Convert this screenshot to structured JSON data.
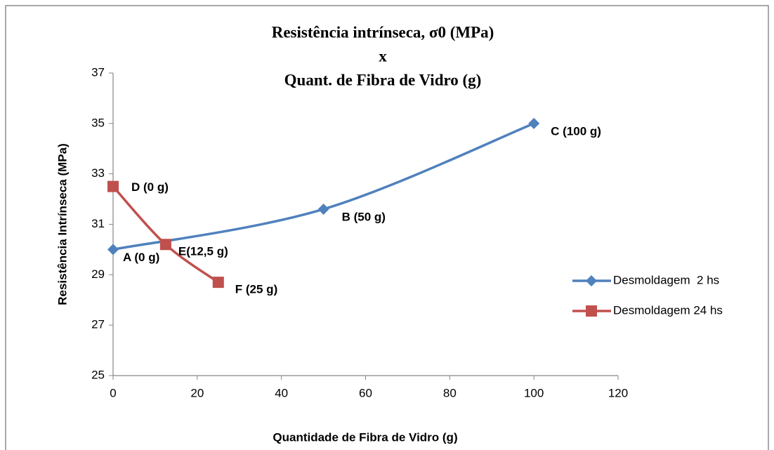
{
  "chart_data": {
    "type": "line",
    "title": [
      "Resistência intrínseca, σ0 (MPa)",
      "x",
      "Quant. de Fibra de Vidro (g)"
    ],
    "xlabel": "Quantidade de Fibra de Vidro (g)",
    "ylabel": "Resistência Intrínseca (MPa)",
    "xlim": [
      0,
      120
    ],
    "xticks": [
      0,
      20,
      40,
      60,
      80,
      100,
      120
    ],
    "ylim": [
      25,
      37
    ],
    "yticks": [
      25,
      27,
      29,
      31,
      33,
      35,
      37
    ],
    "legend": "right",
    "series": [
      {
        "name": "Desmoldagem  2 hs",
        "color": "#4f81bd",
        "marker": "diamond",
        "x": [
          0,
          50,
          100
        ],
        "values": [
          30,
          31.6,
          35
        ],
        "labels": [
          "A (0 g)",
          "B (50 g)",
          "C (100 g)"
        ]
      },
      {
        "name": "Desmoldagem 24 hs",
        "color": "#c0504d",
        "marker": "square",
        "x": [
          0,
          12.5,
          25
        ],
        "values": [
          32.5,
          30.2,
          28.7
        ],
        "labels": [
          "D (0 g)",
          "E(12,5 g)",
          "F (25 g)"
        ]
      }
    ]
  }
}
